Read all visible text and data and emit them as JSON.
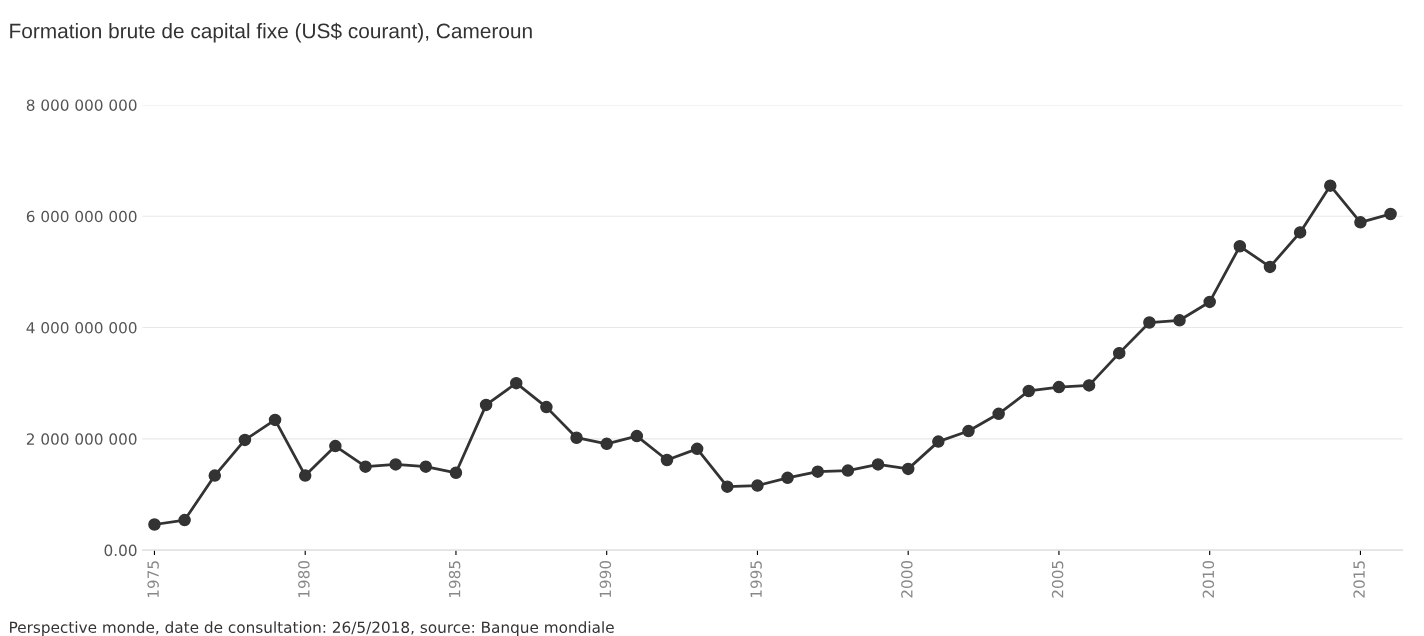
{
  "chart_data": {
    "type": "line",
    "title": "Formation brute de capital fixe (US$ courant), Cameroun",
    "x": [
      1975,
      1976,
      1977,
      1978,
      1979,
      1980,
      1981,
      1982,
      1983,
      1984,
      1985,
      1986,
      1987,
      1988,
      1989,
      1990,
      1991,
      1992,
      1993,
      1994,
      1995,
      1996,
      1997,
      1998,
      1999,
      2000,
      2001,
      2002,
      2003,
      2004,
      2005,
      2006,
      2007,
      2008,
      2009,
      2010,
      2011,
      2012,
      2013,
      2014,
      2015,
      2016
    ],
    "series": [
      {
        "color": "#333333",
        "values": [
          460000000,
          540000000,
          1340000000,
          1980000000,
          2340000000,
          1340000000,
          1870000000,
          1500000000,
          1540000000,
          1500000000,
          1390000000,
          2610000000,
          3000000000,
          2570000000,
          2020000000,
          1910000000,
          2050000000,
          1620000000,
          1820000000,
          1140000000,
          1160000000,
          1300000000,
          1410000000,
          1430000000,
          1540000000,
          1460000000,
          1950000000,
          2140000000,
          2450000000,
          2860000000,
          2930000000,
          2960000000,
          3540000000,
          4090000000,
          4130000000,
          4460000000,
          5460000000,
          5090000000,
          5710000000,
          6550000000,
          5890000000,
          6040000000
        ]
      }
    ],
    "xlim": [
      1974.6,
      2016.4
    ],
    "xticks": [
      1975,
      1980,
      1985,
      1990,
      1995,
      2000,
      2005,
      2010,
      2015
    ],
    "ylim": [
      0,
      8000000000
    ],
    "yticks": [
      {
        "value": 0,
        "label": "0.00"
      },
      {
        "value": 2000000000,
        "label": "2 000 000 000"
      },
      {
        "value": 4000000000,
        "label": "4 000 000 000"
      },
      {
        "value": 6000000000,
        "label": "6 000 000 000"
      },
      {
        "value": 8000000000,
        "label": "8 000 000 000"
      }
    ],
    "grid": "y",
    "marker": "circle",
    "line_style": "solid",
    "annotations": [
      "Perspective monde, date de consultation: 26/5/2018, source: Banque mondiale"
    ]
  }
}
